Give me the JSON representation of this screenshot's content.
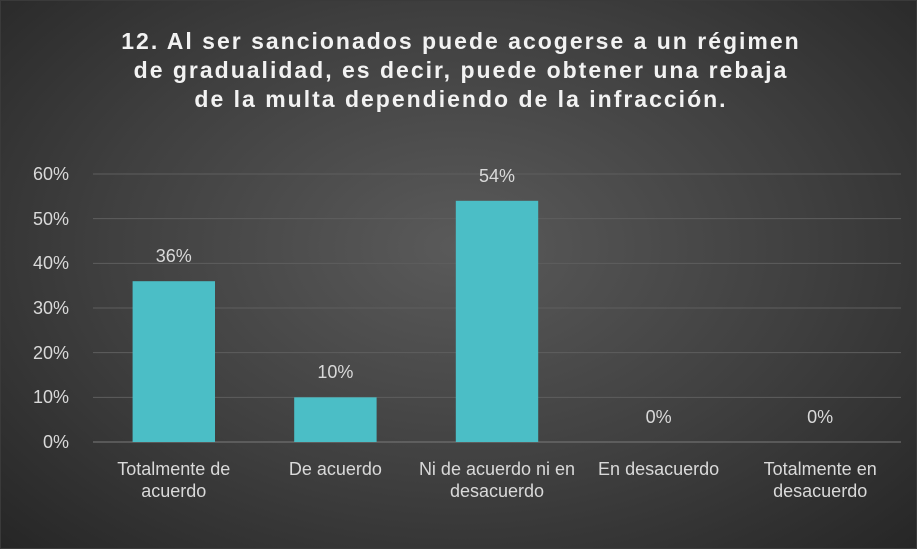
{
  "chart_data": {
    "type": "bar",
    "title": "12.  Al ser sancionados puede acogerse a un régimen de gradualidad, es decir, puede obtener una rebaja de la multa dependiendo de la infracción.",
    "categories": [
      "Totalmente de acuerdo",
      "De acuerdo",
      "Ni de acuerdo ni en desacuerdo",
      "En desacuerdo",
      "Totalmente en desacuerdo"
    ],
    "values": [
      36,
      10,
      54,
      0,
      0
    ],
    "value_labels": [
      "36%",
      "10%",
      "54%",
      "0%",
      "0%"
    ],
    "color": "#4bbec6",
    "ylim": [
      0,
      60
    ],
    "yticks": [
      {
        "value": 0,
        "label": "0%"
      },
      {
        "value": 10,
        "label": "10%"
      },
      {
        "value": 20,
        "label": "20%"
      },
      {
        "value": 30,
        "label": "30%"
      },
      {
        "value": 40,
        "label": "40%"
      },
      {
        "value": 50,
        "label": "50%"
      },
      {
        "value": 60,
        "label": "60%"
      }
    ],
    "grid": true
  }
}
